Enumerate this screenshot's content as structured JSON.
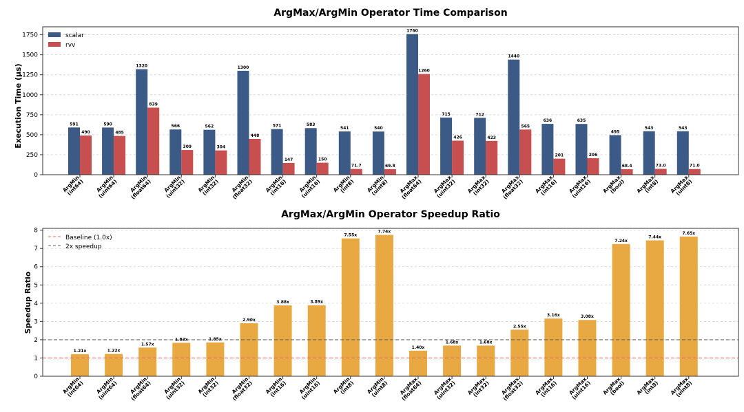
{
  "chart_data": [
    {
      "type": "bar",
      "title": "ArgMax/ArgMin Operator Time Comparison",
      "xlabel": "",
      "ylabel": "Execution Time (μs)",
      "ylim": [
        0,
        1850
      ],
      "yticks": [
        0,
        250,
        500,
        750,
        1000,
        1250,
        1500,
        1750
      ],
      "grid": true,
      "legend_position": "top-left",
      "categories": [
        "ArgMin\n(int64)",
        "ArgMin\n(uint64)",
        "ArgMin\n(float64)",
        "ArgMin\n(uint32)",
        "ArgMin\n(int32)",
        "ArgMin\n(float32)",
        "ArgMin\n(int16)",
        "ArgMin\n(uint16)",
        "ArgMin\n(int8)",
        "ArgMin\n(uint8)",
        "ArgMax\n(float64)",
        "ArgMax\n(uint32)",
        "ArgMax\n(int32)",
        "ArgMax\n(float32)",
        "ArgMax\n(int16)",
        "ArgMax\n(uint16)",
        "ArgMax\n(bool)",
        "ArgMax\n(int8)",
        "ArgMax\n(uint8)"
      ],
      "series": [
        {
          "name": "scalar",
          "color": "#3b5a85",
          "values": [
            591,
            590,
            1320,
            566,
            562,
            1300,
            571,
            583,
            541,
            540,
            1760,
            715,
            712,
            1440,
            636,
            635,
            495,
            543,
            543
          ],
          "labels": [
            "591",
            "590",
            "1320",
            "566",
            "562",
            "1300",
            "571",
            "583",
            "541",
            "540",
            "1760",
            "715",
            "712",
            "1440",
            "636",
            "635",
            "495",
            "543",
            "543"
          ]
        },
        {
          "name": "rvv",
          "color": "#c84f4f",
          "values": [
            490,
            485,
            839,
            309,
            304,
            448,
            147,
            150,
            71.7,
            69.8,
            1260,
            426,
            423,
            565,
            201,
            206,
            68.4,
            73.0,
            71.0
          ],
          "labels": [
            "490",
            "485",
            "839",
            "309",
            "304",
            "448",
            "147",
            "150",
            "71.7",
            "69.8",
            "1260",
            "426",
            "423",
            "565",
            "201",
            "206",
            "68.4",
            "73.0",
            "71.0"
          ]
        }
      ]
    },
    {
      "type": "bar",
      "title": "ArgMax/ArgMin Operator Speedup Ratio",
      "xlabel": "",
      "ylabel": "Speedup Ratio",
      "ylim": [
        0,
        8.1
      ],
      "yticks": [
        0,
        1,
        2,
        3,
        4,
        5,
        6,
        7,
        8
      ],
      "grid": true,
      "legend_position": "top-left",
      "categories": [
        "ArgMin\n(int64)",
        "ArgMin\n(uint64)",
        "ArgMin\n(float64)",
        "ArgMin\n(uint32)",
        "ArgMin\n(int32)",
        "ArgMin\n(float32)",
        "ArgMin\n(int16)",
        "ArgMin\n(uint16)",
        "ArgMin\n(int8)",
        "ArgMin\n(uint8)",
        "ArgMax\n(float64)",
        "ArgMax\n(uint32)",
        "ArgMax\n(int32)",
        "ArgMax\n(float32)",
        "ArgMax\n(int16)",
        "ArgMax\n(uint16)",
        "ArgMax\n(bool)",
        "ArgMax\n(int8)",
        "ArgMax\n(uint8)"
      ],
      "series": [
        {
          "name": "",
          "color": "#e8a842",
          "values": [
            1.21,
            1.22,
            1.57,
            1.83,
            1.85,
            2.9,
            3.88,
            3.89,
            7.55,
            7.74,
            1.4,
            1.68,
            1.68,
            2.55,
            3.16,
            3.08,
            7.24,
            7.44,
            7.65
          ],
          "labels": [
            "1.21x",
            "1.22x",
            "1.57x",
            "1.83x",
            "1.85x",
            "2.90x",
            "3.88x",
            "3.89x",
            "7.55x",
            "7.74x",
            "1.40x",
            "1.68x",
            "1.68x",
            "2.55x",
            "3.16x",
            "3.08x",
            "7.24x",
            "7.44x",
            "7.65x"
          ]
        }
      ],
      "reference_lines": [
        {
          "value": 1.0,
          "label": "Baseline (1.0x)",
          "color": "#e06b5e",
          "style": "dashed"
        },
        {
          "value": 2.0,
          "label": "2x speedup",
          "color": "#666666",
          "style": "dashed"
        }
      ]
    }
  ]
}
